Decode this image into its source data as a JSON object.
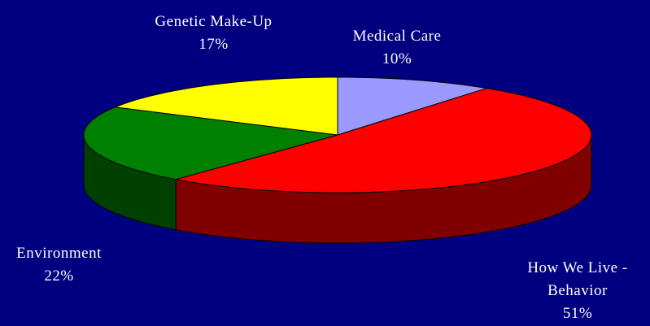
{
  "chart_data": {
    "type": "pie",
    "categories": [
      "Medical Care",
      "How We Live - Behavior",
      "Environment",
      "Genetic Make-Up"
    ],
    "values": [
      10,
      51,
      22,
      17
    ],
    "value_labels": [
      "10%",
      "51%",
      "22%",
      "17%"
    ],
    "colors": [
      "#9999ff",
      "#ff0000",
      "#008000",
      "#ffff00"
    ]
  }
}
